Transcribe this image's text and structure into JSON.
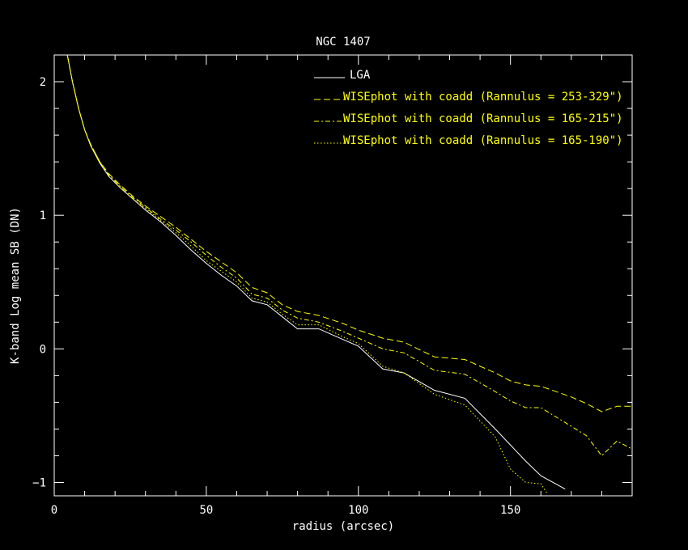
{
  "chart_data": {
    "type": "line",
    "title": "NGC 1407",
    "xlabel": "radius (arcsec)",
    "ylabel": "K-band Log mean SB (DN)",
    "xlim": [
      0,
      190
    ],
    "ylim": [
      -1.1,
      2.2
    ],
    "x_ticks": [
      0,
      50,
      100,
      150
    ],
    "y_ticks": [
      -1,
      0,
      1,
      2
    ],
    "grid": false,
    "legend_position": "top-right (inside plot)",
    "colors": {
      "background": "#000000",
      "axes": "#ffffff",
      "lga": "#ffffff",
      "wisephot": "#ffff00"
    },
    "series": [
      {
        "name": "LGA",
        "line_style": "solid",
        "color": "#ffffff",
        "x": [
          4.3,
          6,
          8,
          10,
          12,
          15,
          18,
          22,
          26,
          30,
          35,
          40,
          45,
          50,
          55,
          60,
          65,
          70,
          75,
          80,
          87,
          95,
          100,
          108,
          115,
          125,
          135,
          145,
          155,
          160,
          168
        ],
        "y": [
          2.2,
          2.0,
          1.8,
          1.64,
          1.52,
          1.39,
          1.29,
          1.2,
          1.12,
          1.04,
          0.95,
          0.85,
          0.74,
          0.64,
          0.55,
          0.47,
          0.36,
          0.33,
          0.24,
          0.15,
          0.15,
          0.07,
          0.02,
          -0.15,
          -0.18,
          -0.31,
          -0.37,
          -0.6,
          -0.84,
          -0.95,
          -1.05
        ]
      },
      {
        "name": "WISEphot with coadd (Rannulus = 253-329\")",
        "line_style": "dashed",
        "color": "#ffff00",
        "x": [
          4.3,
          6,
          8,
          10,
          12,
          15,
          18,
          22,
          26,
          30,
          35,
          40,
          45,
          50,
          55,
          60,
          65,
          70,
          75,
          80,
          87,
          95,
          100,
          108,
          115,
          125,
          135,
          145,
          150,
          155,
          160,
          170,
          175,
          180,
          185,
          190
        ],
        "y": [
          2.2,
          2.0,
          1.8,
          1.64,
          1.53,
          1.4,
          1.31,
          1.22,
          1.14,
          1.07,
          0.99,
          0.91,
          0.82,
          0.73,
          0.65,
          0.57,
          0.46,
          0.42,
          0.33,
          0.28,
          0.25,
          0.19,
          0.14,
          0.08,
          0.05,
          -0.06,
          -0.08,
          -0.18,
          -0.24,
          -0.27,
          -0.28,
          -0.36,
          -0.41,
          -0.47,
          -0.43,
          -0.43
        ]
      },
      {
        "name": "WISEphot with coadd (Rannulus = 165-215\")",
        "line_style": "dash-dot",
        "color": "#ffff00",
        "x": [
          4.3,
          6,
          8,
          10,
          12,
          15,
          18,
          22,
          26,
          30,
          35,
          40,
          45,
          50,
          55,
          60,
          65,
          70,
          75,
          80,
          87,
          95,
          100,
          108,
          115,
          125,
          135,
          145,
          150,
          155,
          160,
          170,
          175,
          180,
          185,
          190
        ],
        "y": [
          2.2,
          2.0,
          1.8,
          1.64,
          1.53,
          1.4,
          1.3,
          1.21,
          1.13,
          1.06,
          0.97,
          0.89,
          0.8,
          0.7,
          0.61,
          0.53,
          0.41,
          0.38,
          0.29,
          0.23,
          0.2,
          0.13,
          0.08,
          0.0,
          -0.03,
          -0.16,
          -0.19,
          -0.32,
          -0.39,
          -0.44,
          -0.44,
          -0.58,
          -0.65,
          -0.8,
          -0.69,
          -0.75
        ]
      },
      {
        "name": "WISEphot with coadd (Rannulus = 165-190\")",
        "line_style": "dotted",
        "color": "#ffff00",
        "x": [
          4.3,
          6,
          8,
          10,
          12,
          15,
          18,
          22,
          26,
          30,
          35,
          40,
          45,
          50,
          55,
          60,
          65,
          70,
          75,
          80,
          87,
          95,
          100,
          108,
          115,
          125,
          135,
          145,
          150,
          155,
          160,
          162
        ],
        "y": [
          2.2,
          2.0,
          1.8,
          1.64,
          1.52,
          1.39,
          1.29,
          1.2,
          1.12,
          1.05,
          0.96,
          0.87,
          0.77,
          0.66,
          0.58,
          0.5,
          0.38,
          0.35,
          0.26,
          0.18,
          0.18,
          0.09,
          0.04,
          -0.13,
          -0.18,
          -0.34,
          -0.42,
          -0.66,
          -0.9,
          -1.0,
          -1.01,
          -1.08
        ]
      }
    ],
    "legend": [
      {
        "label": "LGA",
        "line_style": "solid",
        "color": "#ffffff"
      },
      {
        "label": "WISEphot with coadd (Rannulus = 253-329\")",
        "line_style": "dashed",
        "color": "#ffff00"
      },
      {
        "label": "WISEphot with coadd (Rannulus = 165-215\")",
        "line_style": "dash-dot",
        "color": "#ffff00"
      },
      {
        "label": "WISEphot with coadd (Rannulus = 165-190\")",
        "line_style": "dotted",
        "color": "#ffff00"
      }
    ]
  }
}
